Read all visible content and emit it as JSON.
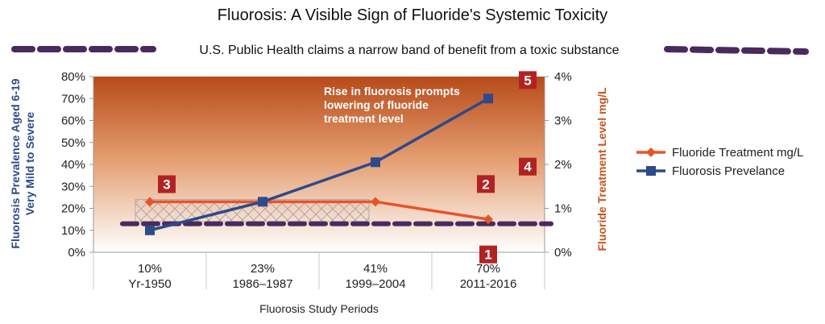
{
  "chart_data": {
    "type": "line",
    "title": "Fluorosis: A Visible Sign of Fluoride's Systemic Toxicity",
    "subtitle": "U.S. Public Health claims a narrow band of benefit from a toxic substance",
    "xlabel": "Fluorosis Study Periods",
    "ylabel_left": [
      "Fluorosis Prevalence Aged 6-19",
      "Very Mild to Severe"
    ],
    "ylabel_right": "Fluoride Treatment Level mg/L",
    "categories": [
      {
        "value": "10%",
        "period": "Yr-1950"
      },
      {
        "value": "23%",
        "period": "1986–1987"
      },
      {
        "value": "41%",
        "period": "1999–2004"
      },
      {
        "value": "70%",
        "period": "2011-2016"
      }
    ],
    "ylim_left": [
      0,
      80
    ],
    "ylim_right": [
      0,
      4
    ],
    "yticks_left": [
      "0%",
      "10%",
      "20%",
      "30%",
      "40%",
      "50%",
      "60%",
      "70%",
      "80%"
    ],
    "yticks_right": [
      "0%",
      "1%",
      "2%",
      "3%",
      "4%"
    ],
    "series": [
      {
        "name": "Fluoride Treatment mg/L",
        "axis": "right",
        "color": "#e8542a",
        "marker": "diamond",
        "values": [
          1.15,
          1.15,
          1.15,
          0.75
        ]
      },
      {
        "name": "Fluorosis Prevelance",
        "axis": "left",
        "color": "#2d4a8a",
        "marker": "square",
        "values": [
          10,
          23,
          41,
          70
        ]
      }
    ],
    "reference_line": {
      "axis": "right",
      "value": 0.65,
      "color": "#4a2a5e",
      "style": "dashed"
    },
    "band": {
      "axis": "right",
      "from": 0.7,
      "to": 1.2,
      "style": "crosshatch"
    },
    "annotation": [
      "Rise in fluorosis prompts",
      "lowering of fluoride",
      "treatment level"
    ],
    "markers": [
      {
        "label": "1",
        "cat": 3,
        "y_right": -0.05
      },
      {
        "label": "2",
        "cat": 3,
        "y_right": 1.15
      },
      {
        "label": "3",
        "cat": 0.15,
        "y_right": 1.55
      },
      {
        "label": "4",
        "cat": 3.35,
        "y_right": 1.95
      },
      {
        "label": "5",
        "cat": 3.35,
        "y_right": 3.92
      }
    ],
    "legend": "right",
    "grid": false,
    "gradient_colors": [
      "#b74a1a",
      "#ffffff"
    ]
  }
}
